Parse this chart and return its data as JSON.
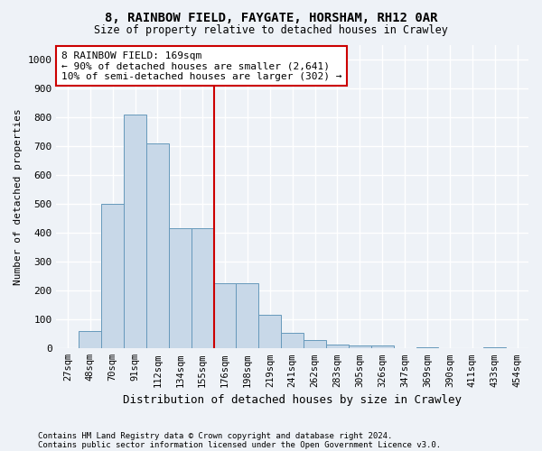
{
  "title": "8, RAINBOW FIELD, FAYGATE, HORSHAM, RH12 0AR",
  "subtitle": "Size of property relative to detached houses in Crawley",
  "xlabel": "Distribution of detached houses by size in Crawley",
  "ylabel": "Number of detached properties",
  "bar_color": "#c8d8e8",
  "bar_edge_color": "#6699bb",
  "categories": [
    "27sqm",
    "48sqm",
    "70sqm",
    "91sqm",
    "112sqm",
    "134sqm",
    "155sqm",
    "176sqm",
    "198sqm",
    "219sqm",
    "241sqm",
    "262sqm",
    "283sqm",
    "305sqm",
    "326sqm",
    "347sqm",
    "369sqm",
    "390sqm",
    "411sqm",
    "433sqm",
    "454sqm"
  ],
  "values": [
    0,
    60,
    500,
    810,
    710,
    415,
    415,
    225,
    225,
    115,
    55,
    30,
    15,
    10,
    10,
    0,
    5,
    0,
    0,
    5,
    0
  ],
  "ylim": [
    0,
    1050
  ],
  "yticks": [
    0,
    100,
    200,
    300,
    400,
    500,
    600,
    700,
    800,
    900,
    1000
  ],
  "vline_x": 6.5,
  "annotation_text": "8 RAINBOW FIELD: 169sqm\n← 90% of detached houses are smaller (2,641)\n10% of semi-detached houses are larger (302) →",
  "annotation_box_color": "#ffffff",
  "annotation_box_edge_color": "#cc0000",
  "vline_color": "#cc0000",
  "footnote1": "Contains HM Land Registry data © Crown copyright and database right 2024.",
  "footnote2": "Contains public sector information licensed under the Open Government Licence v3.0.",
  "background_color": "#eef2f7",
  "grid_color": "#ffffff",
  "figsize": [
    6.0,
    5.0
  ],
  "dpi": 100
}
